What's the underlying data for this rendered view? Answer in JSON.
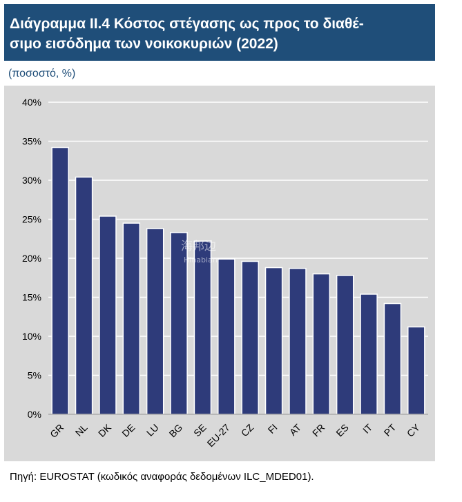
{
  "header": {
    "title_line1": "Διάγραμμα ΙΙ.4 Κόστος στέγασης ως προς το διαθέ-",
    "title_line2": "σιμο εισόδημα των νοικοκυριών (2022)"
  },
  "subtitle": "(ποσοστό, %)",
  "source": "Πηγή: EUROSTAT (κωδικός αναφοράς δεδομένων ILC_MDED01).",
  "watermark": {
    "text": "海邦边",
    "sub": "Hinabian"
  },
  "colors": {
    "bar": "#2e3b7a",
    "plot_bg": "#d9d9d9",
    "grid": "#ffffff",
    "header": "#1f4e79"
  },
  "chart_data": {
    "type": "bar",
    "title": "Κόστος στέγασης ως προς το διαθέσιμο εισόδημα των νοικοκυριών (2022)",
    "ylabel": "ποσοστό, %",
    "xlabel": "",
    "categories": [
      "GR",
      "NL",
      "DK",
      "DE",
      "LU",
      "BG",
      "SE",
      "EU-27",
      "CZ",
      "FI",
      "AT",
      "FR",
      "ES",
      "IT",
      "PT",
      "CY"
    ],
    "values": [
      34.2,
      30.4,
      25.4,
      24.5,
      23.8,
      23.3,
      22.2,
      19.9,
      19.6,
      18.8,
      18.7,
      18.0,
      17.8,
      15.4,
      14.2,
      11.2
    ],
    "ylim": [
      0,
      40
    ],
    "yticks": [
      0,
      5,
      10,
      15,
      20,
      25,
      30,
      35,
      40
    ],
    "ytick_labels": [
      "0%",
      "5%",
      "10%",
      "15%",
      "20%",
      "25%",
      "30%",
      "35%",
      "40%"
    ],
    "grid": true,
    "legend": "none"
  }
}
